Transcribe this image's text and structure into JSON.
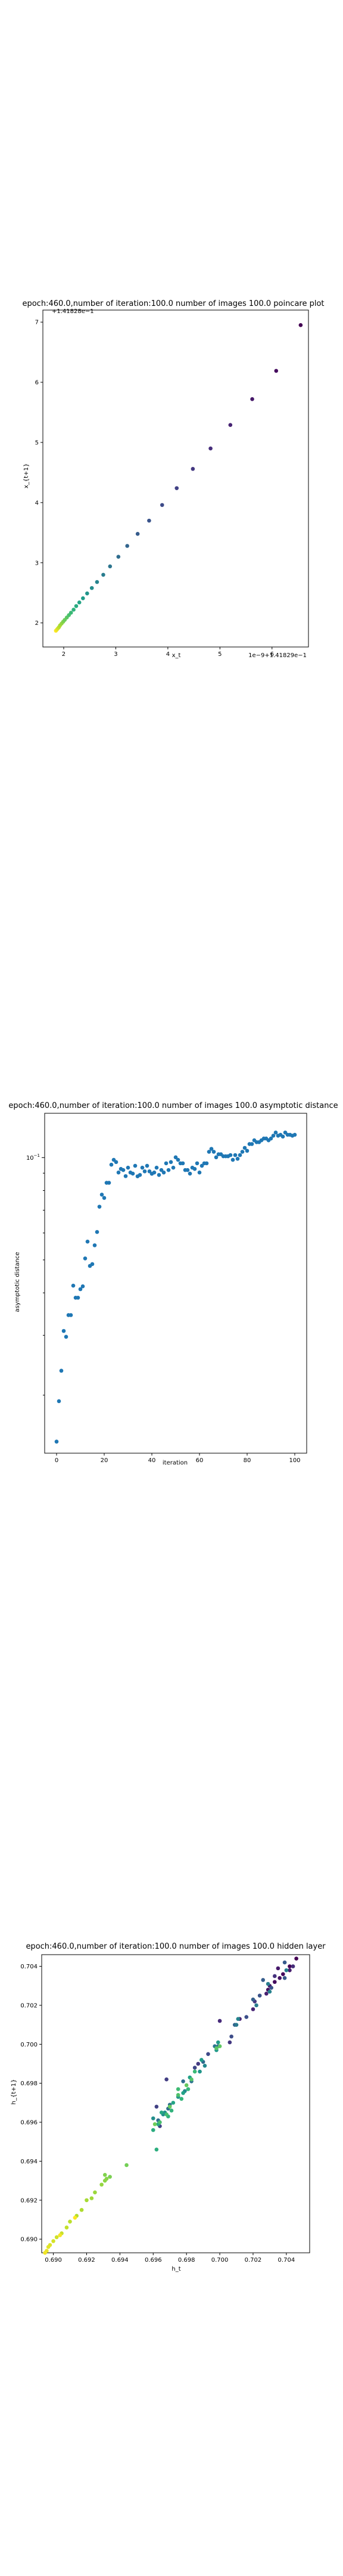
{
  "chart_data": [
    {
      "type": "scatter",
      "title": "epoch:460.0,number of iteration:100.0  number of images 100.0 poincare plot",
      "offset_label_top": "+1.41828e−1",
      "offset_label_bottom": "1e−9+1.41829e−1",
      "xlabel": "x_t",
      "ylabel": "x_{t+1}",
      "xticks": [
        2,
        3,
        4,
        5,
        6
      ],
      "yticks": [
        2,
        3,
        4,
        5,
        6,
        7
      ],
      "xlim": [
        1.6,
        6.7
      ],
      "ylim": [
        1.6,
        7.2
      ],
      "colormap": "viridis (index order, yellow to purple)",
      "points": [
        {
          "x": 1.85,
          "y": 1.87
        },
        {
          "x": 1.87,
          "y": 1.89
        },
        {
          "x": 1.89,
          "y": 1.91
        },
        {
          "x": 1.91,
          "y": 1.93
        },
        {
          "x": 1.93,
          "y": 1.96
        },
        {
          "x": 1.96,
          "y": 1.99
        },
        {
          "x": 1.99,
          "y": 2.02
        },
        {
          "x": 2.02,
          "y": 2.05
        },
        {
          "x": 2.06,
          "y": 2.09
        },
        {
          "x": 2.1,
          "y": 2.13
        },
        {
          "x": 2.14,
          "y": 2.17
        },
        {
          "x": 2.19,
          "y": 2.22
        },
        {
          "x": 2.24,
          "y": 2.28
        },
        {
          "x": 2.3,
          "y": 2.34
        },
        {
          "x": 2.37,
          "y": 2.41
        },
        {
          "x": 2.45,
          "y": 2.49
        },
        {
          "x": 2.54,
          "y": 2.58
        },
        {
          "x": 2.64,
          "y": 2.68
        },
        {
          "x": 2.76,
          "y": 2.8
        },
        {
          "x": 2.89,
          "y": 2.94
        },
        {
          "x": 3.05,
          "y": 3.1
        },
        {
          "x": 3.22,
          "y": 3.28
        },
        {
          "x": 3.42,
          "y": 3.48
        },
        {
          "x": 3.64,
          "y": 3.7
        },
        {
          "x": 3.89,
          "y": 3.96
        },
        {
          "x": 4.17,
          "y": 4.24
        },
        {
          "x": 4.48,
          "y": 4.56
        },
        {
          "x": 4.82,
          "y": 4.9
        },
        {
          "x": 5.2,
          "y": 5.29
        },
        {
          "x": 5.62,
          "y": 5.72
        },
        {
          "x": 6.08,
          "y": 6.19
        },
        {
          "x": 6.55,
          "y": 6.95
        }
      ]
    },
    {
      "type": "scatter",
      "title": "epoch:460.0,number of iteration:100.0  number of images 100.0 asymptotic distance",
      "xlabel": "iteration",
      "ylabel": "asymptotic distance",
      "yscale": "log",
      "ytick_label": "10^{-1}",
      "xticks": [
        0,
        20,
        40,
        60,
        80,
        100
      ],
      "xlim": [
        -5,
        105
      ],
      "color": "#1f77b4",
      "x": [
        0,
        1,
        2,
        3,
        4,
        5,
        6,
        7,
        8,
        9,
        10,
        11,
        12,
        13,
        14,
        15,
        16,
        17,
        18,
        19,
        20,
        21,
        22,
        23,
        24,
        25,
        26,
        27,
        28,
        29,
        30,
        31,
        32,
        33,
        34,
        35,
        36,
        37,
        38,
        39,
        40,
        41,
        42,
        43,
        44,
        45,
        46,
        47,
        48,
        49,
        50,
        51,
        52,
        53,
        54,
        55,
        56,
        57,
        58,
        59,
        60,
        61,
        62,
        63,
        64,
        65,
        66,
        67,
        68,
        69,
        70,
        71,
        72,
        73,
        74,
        75,
        76,
        77,
        78,
        79,
        80,
        81,
        82,
        83,
        84,
        85,
        86,
        87,
        88,
        89,
        90,
        91,
        92,
        93,
        94,
        95,
        96,
        97,
        98,
        99,
        100
      ],
      "y": [
        0.0146,
        0.0192,
        0.0236,
        0.0309,
        0.0297,
        0.0344,
        0.0344,
        0.042,
        0.0387,
        0.0387,
        0.041,
        0.0418,
        0.0505,
        0.0566,
        0.048,
        0.0486,
        0.0552,
        0.0604,
        0.0717,
        0.0778,
        0.0761,
        0.0843,
        0.0843,
        0.0953,
        0.0985,
        0.097,
        0.0904,
        0.0926,
        0.0919,
        0.0882,
        0.0934,
        0.0904,
        0.0897,
        0.0946,
        0.0881,
        0.0889,
        0.0934,
        0.0911,
        0.0946,
        0.0911,
        0.0896,
        0.0904,
        0.0934,
        0.0889,
        0.0919,
        0.0904,
        0.0962,
        0.0919,
        0.097,
        0.0934,
        0.1002,
        0.0985,
        0.0962,
        0.0962,
        0.0919,
        0.0919,
        0.0897,
        0.0934,
        0.0926,
        0.0962,
        0.0904,
        0.0946,
        0.0962,
        0.0962,
        0.104,
        0.1061,
        0.104,
        0.1002,
        0.1023,
        0.1023,
        0.1009,
        0.1009,
        0.1009,
        0.1017,
        0.0985,
        0.1017,
        0.0992,
        0.1017,
        0.104,
        0.1068,
        0.1047,
        0.1096,
        0.1096,
        0.1124,
        0.111,
        0.111,
        0.1124,
        0.1138,
        0.1138,
        0.1124,
        0.1138,
        0.116,
        0.1185,
        0.116,
        0.1167,
        0.1153,
        0.1185,
        0.1167,
        0.1167,
        0.116,
        0.1167
      ]
    },
    {
      "type": "scatter",
      "title": "epoch:460.0,number of iteration:100.0  number of images 100.0 hidden layer",
      "xlabel": "h_t",
      "ylabel": "h_{t+1}",
      "xticks": [
        0.69,
        0.692,
        0.694,
        0.696,
        0.698,
        0.7,
        0.702,
        0.704
      ],
      "yticks": [
        0.69,
        0.692,
        0.694,
        0.696,
        0.698,
        0.7,
        0.702,
        0.704
      ],
      "xlim": [
        0.6893,
        0.7054
      ],
      "ylim": [
        0.6893,
        0.7046
      ],
      "colormap": "viridis (index order, purple to yellow)",
      "points": [
        {
          "x": 0.7046,
          "y": 0.7044
        },
        {
          "x": 0.7042,
          "y": 0.704
        },
        {
          "x": 0.7038,
          "y": 0.7036
        },
        {
          "x": 0.7033,
          "y": 0.7032
        },
        {
          "x": 0.7029,
          "y": 0.7028
        },
        {
          "x": 0.7036,
          "y": 0.7034
        },
        {
          "x": 0.703,
          "y": 0.703
        },
        {
          "x": 0.7035,
          "y": 0.7039
        },
        {
          "x": 0.7042,
          "y": 0.7038
        },
        {
          "x": 0.7028,
          "y": 0.7026
        },
        {
          "x": 0.702,
          "y": 0.7018
        },
        {
          "x": 0.7012,
          "y": 0.7013
        },
        {
          "x": 0.7,
          "y": 0.7012
        },
        {
          "x": 0.7044,
          "y": 0.704
        },
        {
          "x": 0.7033,
          "y": 0.7035
        },
        {
          "x": 0.7021,
          "y": 0.7022
        },
        {
          "x": 0.7006,
          "y": 0.7001
        },
        {
          "x": 0.6987,
          "y": 0.699
        },
        {
          "x": 0.6968,
          "y": 0.6982
        },
        {
          "x": 0.6962,
          "y": 0.6968
        },
        {
          "x": 0.6964,
          "y": 0.6958
        },
        {
          "x": 0.6985,
          "y": 0.6988
        },
        {
          "x": 0.6993,
          "y": 0.6995
        },
        {
          "x": 0.7007,
          "y": 0.7004
        },
        {
          "x": 0.7016,
          "y": 0.7014
        },
        {
          "x": 0.7024,
          "y": 0.7025
        },
        {
          "x": 0.7031,
          "y": 0.7029
        },
        {
          "x": 0.7039,
          "y": 0.7034
        },
        {
          "x": 0.7039,
          "y": 0.7042
        },
        {
          "x": 0.7026,
          "y": 0.7033
        },
        {
          "x": 0.702,
          "y": 0.7023
        },
        {
          "x": 0.7009,
          "y": 0.701
        },
        {
          "x": 0.6999,
          "y": 0.6999
        },
        {
          "x": 0.699,
          "y": 0.6991
        },
        {
          "x": 0.6978,
          "y": 0.6981
        },
        {
          "x": 0.6969,
          "y": 0.6967
        },
        {
          "x": 0.6963,
          "y": 0.6961
        },
        {
          "x": 0.697,
          "y": 0.6969
        },
        {
          "x": 0.6983,
          "y": 0.6981
        },
        {
          "x": 0.6997,
          "y": 0.6999
        },
        {
          "x": 0.701,
          "y": 0.701
        },
        {
          "x": 0.7022,
          "y": 0.702
        },
        {
          "x": 0.7029,
          "y": 0.7031
        },
        {
          "x": 0.704,
          "y": 0.7038
        },
        {
          "x": 0.703,
          "y": 0.7027
        },
        {
          "x": 0.7011,
          "y": 0.7013
        },
        {
          "x": 0.6991,
          "y": 0.6989
        },
        {
          "x": 0.6979,
          "y": 0.6976
        },
        {
          "x": 0.6966,
          "y": 0.6964
        },
        {
          "x": 0.696,
          "y": 0.6962
        },
        {
          "x": 0.6967,
          "y": 0.6965
        },
        {
          "x": 0.6975,
          "y": 0.6973
        },
        {
          "x": 0.6988,
          "y": 0.6986
        },
        {
          "x": 0.6998,
          "y": 0.6997
        },
        {
          "x": 0.6999,
          "y": 0.7001
        },
        {
          "x": 0.6989,
          "y": 0.6992
        },
        {
          "x": 0.6982,
          "y": 0.6983
        },
        {
          "x": 0.6978,
          "y": 0.6975
        },
        {
          "x": 0.6972,
          "y": 0.697
        },
        {
          "x": 0.6965,
          "y": 0.6965
        },
        {
          "x": 0.6963,
          "y": 0.6959
        },
        {
          "x": 0.696,
          "y": 0.6956
        },
        {
          "x": 0.6962,
          "y": 0.6946
        },
        {
          "x": 0.6969,
          "y": 0.6963
        },
        {
          "x": 0.6971,
          "y": 0.6966
        },
        {
          "x": 0.6977,
          "y": 0.6972
        },
        {
          "x": 0.6981,
          "y": 0.6977
        },
        {
          "x": 0.6985,
          "y": 0.6986
        },
        {
          "x": 0.6975,
          "y": 0.6977
        },
        {
          "x": 0.6968,
          "y": 0.6964
        },
        {
          "x": 0.6964,
          "y": 0.696
        },
        {
          "x": 0.6975,
          "y": 0.6974
        },
        {
          "x": 0.6983,
          "y": 0.6982
        },
        {
          "x": 0.6998,
          "y": 0.6998
        },
        {
          "x": 0.7,
          "y": 0.6999
        },
        {
          "x": 0.698,
          "y": 0.6979
        },
        {
          "x": 0.697,
          "y": 0.6968
        },
        {
          "x": 0.6961,
          "y": 0.6959
        },
        {
          "x": 0.6944,
          "y": 0.6938
        },
        {
          "x": 0.6934,
          "y": 0.6932
        },
        {
          "x": 0.6931,
          "y": 0.6933
        },
        {
          "x": 0.6932,
          "y": 0.6931
        },
        {
          "x": 0.6931,
          "y": 0.693
        },
        {
          "x": 0.6929,
          "y": 0.6928
        },
        {
          "x": 0.6925,
          "y": 0.6924
        },
        {
          "x": 0.6923,
          "y": 0.6921
        },
        {
          "x": 0.692,
          "y": 0.692
        },
        {
          "x": 0.6917,
          "y": 0.6915
        },
        {
          "x": 0.6914,
          "y": 0.6912
        },
        {
          "x": 0.691,
          "y": 0.6909
        },
        {
          "x": 0.6908,
          "y": 0.6906
        },
        {
          "x": 0.6905,
          "y": 0.6903
        },
        {
          "x": 0.6902,
          "y": 0.6901
        },
        {
          "x": 0.69,
          "y": 0.6899
        },
        {
          "x": 0.6898,
          "y": 0.6897
        },
        {
          "x": 0.6897,
          "y": 0.6896
        },
        {
          "x": 0.6896,
          "y": 0.6894
        },
        {
          "x": 0.6895,
          "y": 0.6893
        },
        {
          "x": 0.6904,
          "y": 0.6902
        },
        {
          "x": 0.6913,
          "y": 0.6911
        }
      ]
    }
  ]
}
